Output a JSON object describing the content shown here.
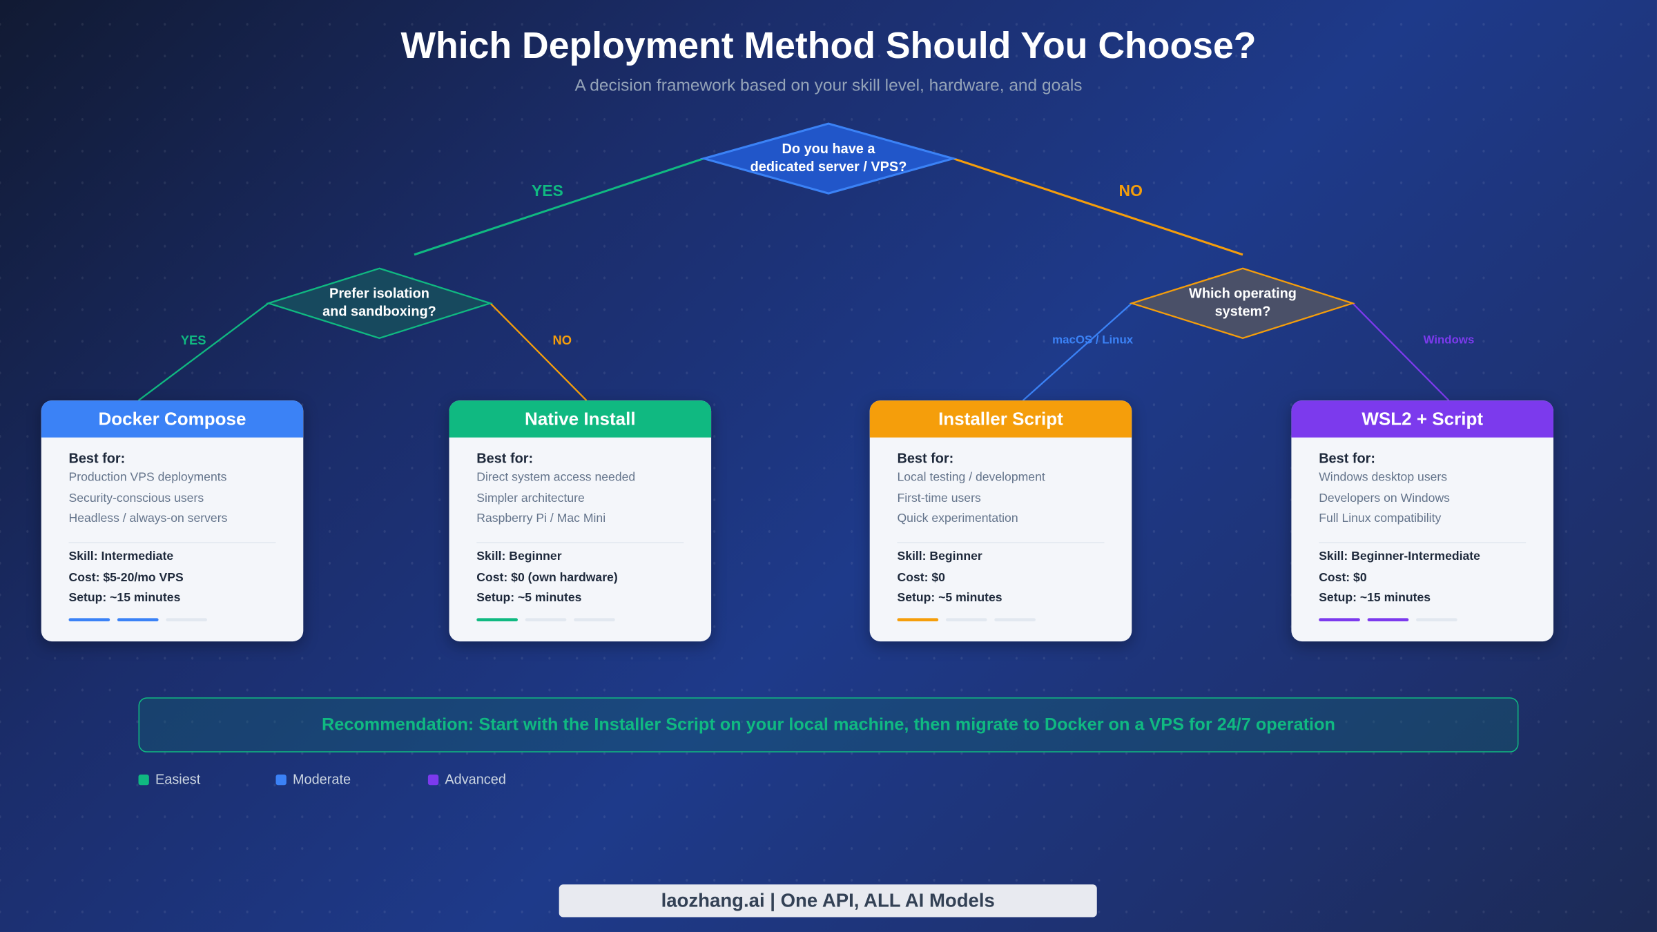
{
  "title": "Which Deployment Method Should You Choose?",
  "subtitle": "A decision framework based on your skill level, hardware, and goals",
  "colors": {
    "blue": "#3b82f6",
    "green": "#10b981",
    "orange": "#f59e0b",
    "purple": "#7c3aed"
  },
  "decisions": {
    "root": {
      "line1": "Do you have a",
      "line2": "dedicated server / VPS?",
      "yes": "YES",
      "no": "NO"
    },
    "isolation": {
      "line1": "Prefer isolation",
      "line2": "and sandboxing?",
      "yes": "YES",
      "no": "NO"
    },
    "os": {
      "line1": "Which operating",
      "line2": "system?",
      "left": "macOS / Linux",
      "right": "Windows"
    }
  },
  "cards": [
    {
      "title": "Docker Compose",
      "best_for": "Best for:",
      "items": [
        "Production VPS deployments",
        "Security-conscious users",
        "Headless / always-on servers"
      ],
      "skill": "Skill: Intermediate",
      "cost": "Cost: $5-20/mo VPS",
      "setup": "Setup: ~15 minutes",
      "difficulty": 2,
      "color": "#3b82f6"
    },
    {
      "title": "Native Install",
      "best_for": "Best for:",
      "items": [
        "Direct system access needed",
        "Simpler architecture",
        "Raspberry Pi / Mac Mini"
      ],
      "skill": "Skill: Beginner",
      "cost": "Cost: $0 (own hardware)",
      "setup": "Setup: ~5 minutes",
      "difficulty": 1,
      "color": "#10b981"
    },
    {
      "title": "Installer Script",
      "best_for": "Best for:",
      "items": [
        "Local testing / development",
        "First-time users",
        "Quick experimentation"
      ],
      "skill": "Skill: Beginner",
      "cost": "Cost: $0",
      "setup": "Setup: ~5 minutes",
      "difficulty": 1,
      "color": "#f59e0b"
    },
    {
      "title": "WSL2 + Script",
      "best_for": "Best for:",
      "items": [
        "Windows desktop users",
        "Developers on Windows",
        "Full Linux compatibility"
      ],
      "skill": "Skill: Beginner-Intermediate",
      "cost": "Cost: $0",
      "setup": "Setup: ~15 minutes",
      "difficulty": 2,
      "color": "#7c3aed"
    }
  ],
  "recommendation": "Recommendation: Start with the Installer Script on your local machine, then migrate to Docker on a VPS for 24/7 operation",
  "legend": [
    {
      "label": "Easiest",
      "color": "#10b981"
    },
    {
      "label": "Moderate",
      "color": "#3b82f6"
    },
    {
      "label": "Advanced",
      "color": "#7c3aed"
    }
  ],
  "footer": "laozhang.ai | One API, ALL AI Models"
}
